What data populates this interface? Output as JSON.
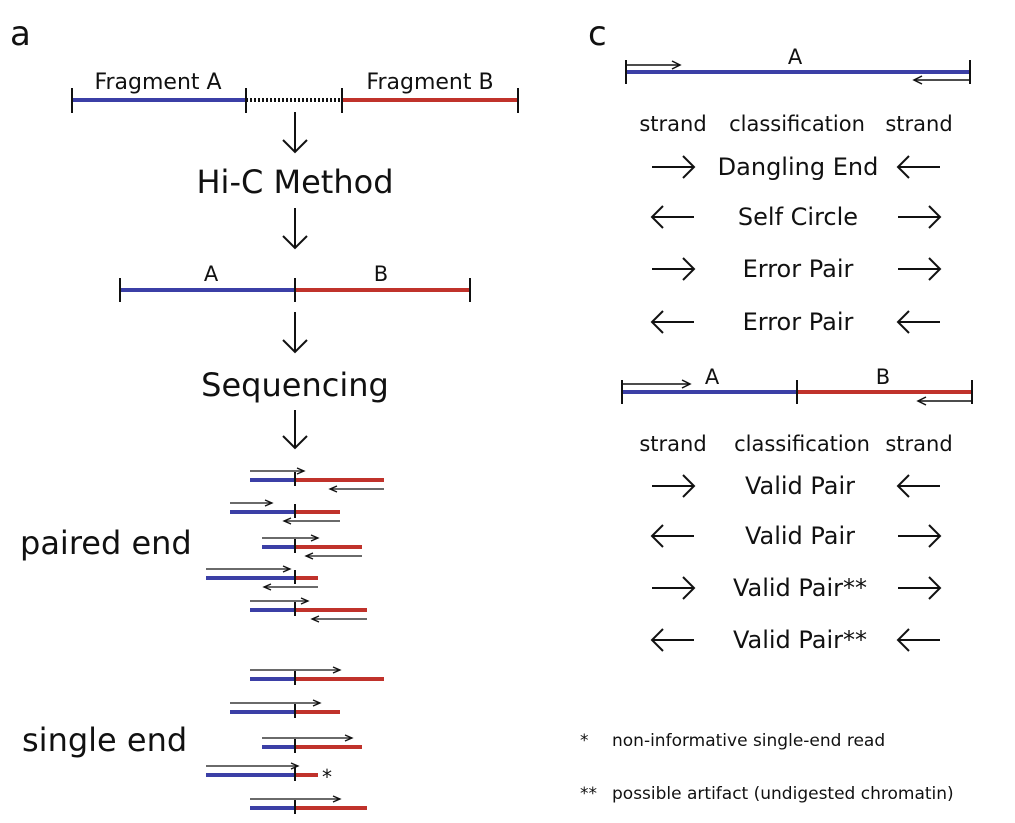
{
  "colors": {
    "blue": "#3b3fa6",
    "red": "#c0322b",
    "ink": "#111111"
  },
  "panel_a": {
    "letter": "a",
    "fragment_a": "Fragment A",
    "fragment_b": "Fragment B",
    "step1": "Hi-C Method",
    "label_a": "A",
    "label_b": "B",
    "step2": "Sequencing",
    "paired_end": "paired end",
    "single_end": "single end",
    "asterisk": "*"
  },
  "panel_c": {
    "letter": "c",
    "label_a_top": "A",
    "header_left": "strand",
    "header_mid": "classification",
    "header_right": "strand",
    "rows_top": [
      {
        "left": "right",
        "label": "Dangling End",
        "right": "left"
      },
      {
        "left": "left",
        "label": "Self Circle",
        "right": "right"
      },
      {
        "left": "right",
        "label": "Error Pair",
        "right": "right"
      },
      {
        "left": "left",
        "label": "Error Pair",
        "right": "left"
      }
    ],
    "label_a_bottom": "A",
    "label_b_bottom": "B",
    "rows_bottom": [
      {
        "left": "right",
        "label": "Valid Pair",
        "right": "left"
      },
      {
        "left": "left",
        "label": "Valid Pair",
        "right": "right"
      },
      {
        "left": "right",
        "label": "Valid Pair**",
        "right": "right"
      },
      {
        "left": "left",
        "label": "Valid Pair**",
        "right": "left"
      }
    ],
    "footnote1_mark": "*",
    "footnote1_text": "non-informative single-end read",
    "footnote2_mark": "**",
    "footnote2_text": "possible artifact (undigested chromatin)"
  }
}
